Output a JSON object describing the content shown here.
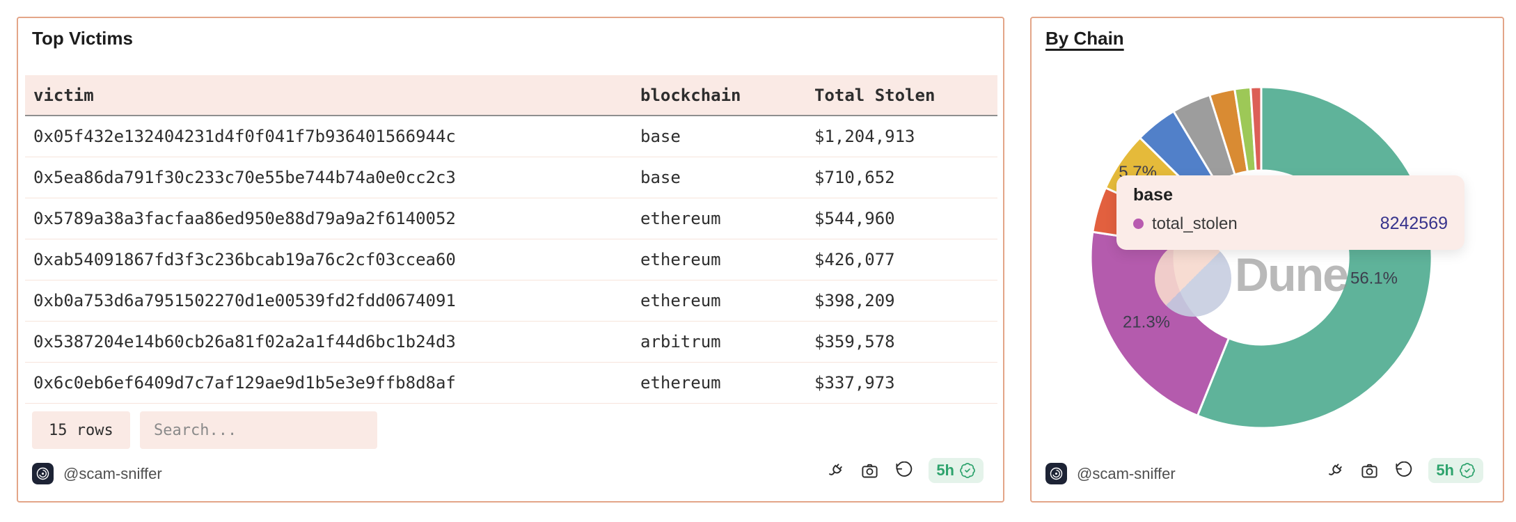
{
  "colors": {
    "panel_border": "#e3a588",
    "accent_pink_bg": "#faeae5",
    "badge_green": "#2ea36d",
    "badge_green_bg": "#e4f3ea",
    "tooltip_value_color": "#37338c"
  },
  "left_panel": {
    "title": "Top Victims",
    "table": {
      "columns": [
        "victim",
        "blockchain",
        "Total Stolen"
      ],
      "rows": [
        [
          "0x05f432e132404231d4f0f041f7b936401566944c",
          "base",
          "$1,204,913"
        ],
        [
          "0x5ea86da791f30c233c70e55be744b74a0e0cc2c3",
          "base",
          "$710,652"
        ],
        [
          "0x5789a38a3facfaa86ed950e88d79a9a2f6140052",
          "ethereum",
          "$544,960"
        ],
        [
          "0xab54091867fd3f3c236bcab19a76c2cf03ccea60",
          "ethereum",
          "$426,077"
        ],
        [
          "0xb0a753d6a7951502270d1e00539fd2fdd0674091",
          "ethereum",
          "$398,209"
        ],
        [
          "0x5387204e14b60cb26a81f02a2a1f44d6bc1b24d3",
          "arbitrum",
          "$359,578"
        ],
        [
          "0x6c0eb6ef6409d7c7af129ae9d1b5e3e9ffb8d8af",
          "ethereum",
          "$337,973"
        ]
      ]
    },
    "rows_button_label": "15 rows",
    "search_placeholder": "Search...",
    "author": "@scam-sniffer",
    "freshness_label": "5h",
    "footer_icons": [
      "plug-icon",
      "camera-icon",
      "rotate-ccw-icon",
      "verified-badge-icon"
    ]
  },
  "right_panel": {
    "title": "By Chain",
    "author": "@scam-sniffer",
    "freshness_label": "5h",
    "watermark_text": "Dune",
    "tooltip": {
      "title": "base",
      "series_label": "total_stolen",
      "value": "8242569",
      "dot_color": "#b85bb0",
      "value_color": "#37338c"
    },
    "footer_icons": [
      "plug-icon",
      "camera-icon",
      "rotate-ccw-icon",
      "verified-badge-icon"
    ]
  },
  "chart_data": {
    "type": "pie",
    "donut": true,
    "title": "By Chain",
    "series_name": "total_stolen",
    "legend": "none",
    "labels_position": "inside",
    "hovered_slice": {
      "name": "base",
      "series": "total_stolen",
      "value": 8242569
    },
    "slices": [
      {
        "percent": 56.1,
        "label": "56.1%",
        "label_r": 165,
        "color": "#5fb39a"
      },
      {
        "percent": 21.3,
        "label": "21.3%",
        "label_r": 190,
        "color": "#b45bad"
      },
      {
        "percent": 4.3,
        "color": "#e2603f"
      },
      {
        "percent": 5.7,
        "label": "5.7%",
        "label_r": 215,
        "color": "#e5ba3a"
      },
      {
        "percent": 4.0,
        "color": "#5180c9"
      },
      {
        "percent": 3.7,
        "color": "#9d9d9d"
      },
      {
        "percent": 2.4,
        "color": "#d98b33"
      },
      {
        "percent": 1.5,
        "color": "#9dc857"
      },
      {
        "percent": 1.0,
        "color": "#dc5f57"
      }
    ]
  }
}
